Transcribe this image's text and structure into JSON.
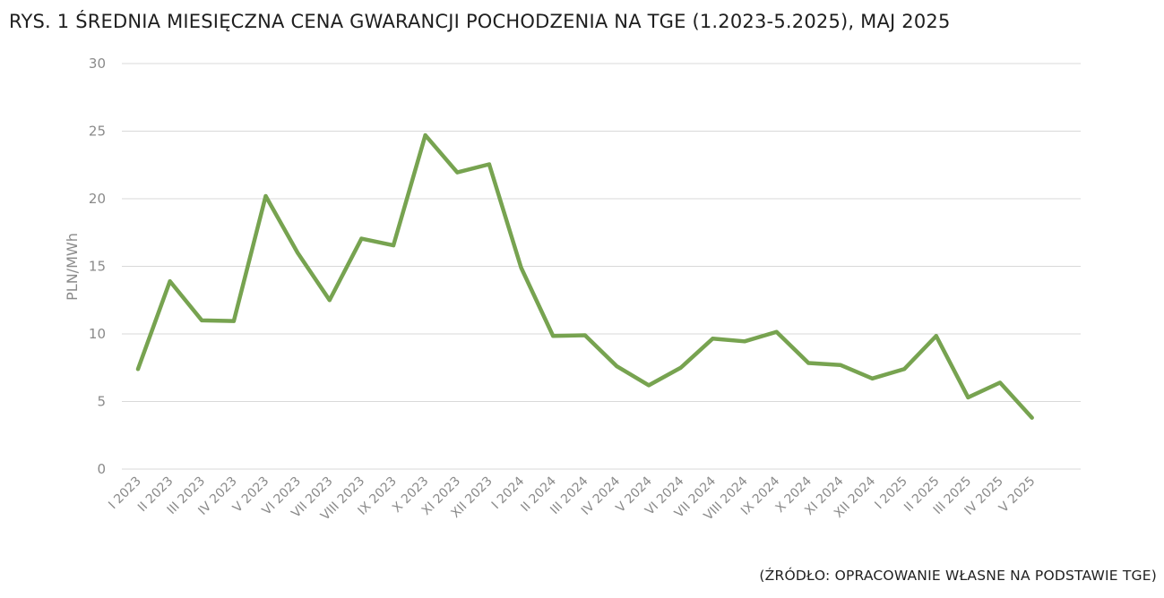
{
  "chart_data": {
    "type": "line",
    "title": "RYS. 1 ŚREDNIA MIESIĘCZNA CENA GWARANCJI POCHODZENIA NA TGE (1.2023-5.2025), MAJ 2025",
    "ylabel": "PLN/MWh",
    "xlabel": "",
    "ylim": [
      0,
      30
    ],
    "yticks": [
      0,
      5,
      10,
      15,
      20,
      25,
      30
    ],
    "grid": true,
    "categories": [
      "I 2023",
      "II 2023",
      "III 2023",
      "IV 2023",
      "V 2023",
      "VI 2023",
      "VII 2023",
      "VIII 2023",
      "IX 2023",
      "X 2023",
      "XI 2023",
      "XII 2023",
      "I 2024",
      "II 2024",
      "III 2024",
      "IV 2024",
      "V 2024",
      "VI 2024",
      "VII 2024",
      "VIII 2024",
      "IX 2024",
      "X 2024",
      "XI 2024",
      "XII 2024",
      "I 2025",
      "II 2025",
      "III 2025",
      "IV 2025",
      "V 2025"
    ],
    "series": [
      {
        "color": "#77a350",
        "values": [
          7.4,
          13.9,
          11.0,
          10.95,
          20.2,
          16.0,
          12.5,
          17.05,
          16.55,
          24.7,
          21.95,
          22.55,
          14.9,
          9.85,
          9.9,
          7.6,
          6.2,
          7.5,
          9.65,
          9.45,
          10.15,
          7.85,
          7.7,
          6.7,
          7.4,
          9.85,
          5.3,
          6.4,
          3.8
        ]
      }
    ],
    "source": "(ŹRÓDŁO: OPRACOWANIE WŁASNE NA PODSTAWIE TGE)"
  }
}
